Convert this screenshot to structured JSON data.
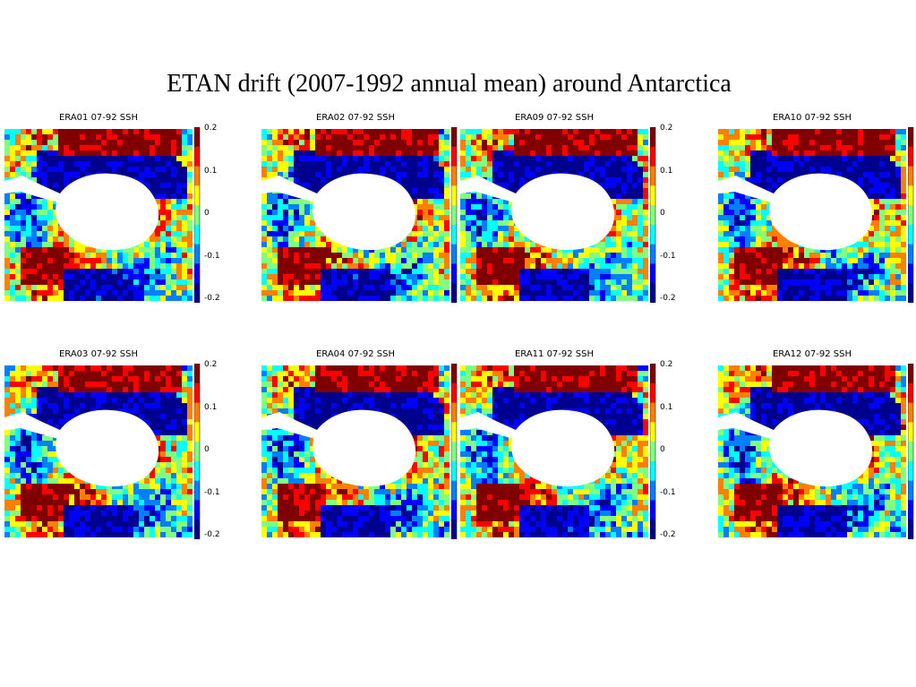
{
  "title": "ETAN drift (2007-1992 annual mean) around Antarctica",
  "colormap": [
    "#00008f",
    "#0000ff",
    "#0080ff",
    "#00ffff",
    "#80ff80",
    "#ffff00",
    "#ff8000",
    "#ff0000",
    "#800000"
  ],
  "chart_data": {
    "type": "heatmap",
    "variable": "SSH",
    "colorbar": {
      "ticks": [
        "0.2",
        "0.1",
        "0",
        "-0.1",
        "-0.2"
      ],
      "range": [
        -0.2,
        0.2
      ]
    },
    "panels": [
      {
        "title": "ERA01 07-92 SSH",
        "show_ticks": true,
        "seed": 11
      },
      {
        "title": "ERA02 07-92 SSH",
        "show_ticks": false,
        "seed": 23
      },
      {
        "title": "ERA09 07-92 SSH",
        "show_ticks": true,
        "seed": 37
      },
      {
        "title": "ERA10 07-92 SSH",
        "show_ticks": false,
        "seed": 41
      },
      {
        "title": "ERA03 07-92 SSH",
        "show_ticks": true,
        "seed": 53
      },
      {
        "title": "ERA04 07-92 SSH",
        "show_ticks": false,
        "seed": 67
      },
      {
        "title": "ERA11 07-92 SSH",
        "show_ticks": true,
        "seed": 71
      },
      {
        "title": "ERA12 07-92 SSH",
        "show_ticks": false,
        "seed": 89
      }
    ]
  }
}
